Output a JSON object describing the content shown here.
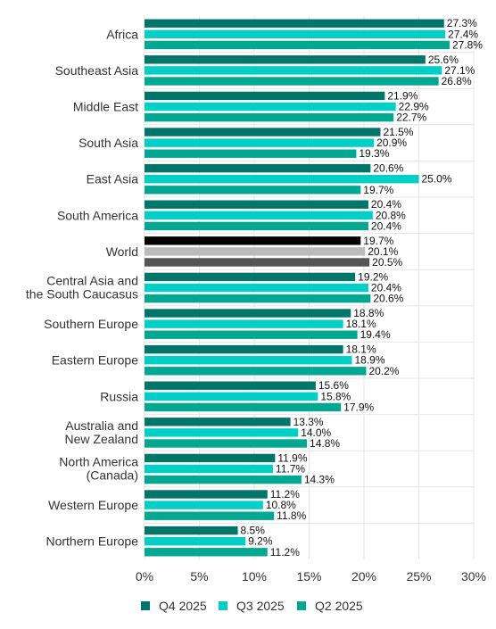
{
  "chart_data": {
    "type": "bar",
    "orientation": "horizontal",
    "categories": [
      "Africa",
      "Southeast Asia",
      "Middle East",
      "South Asia",
      "East Asia",
      "South America",
      "World",
      "Central Asia and the South Caucasus",
      "Southern Europe",
      "Eastern Europe",
      "Russia",
      "Australia and New Zealand",
      "North America (Canada)",
      "Western Europe",
      "Northern Europe"
    ],
    "series": [
      {
        "name": "Q4 2025",
        "color": "#00756a",
        "values": [
          27.3,
          25.6,
          21.9,
          21.5,
          20.6,
          20.4,
          19.7,
          19.2,
          18.8,
          18.1,
          15.6,
          13.3,
          11.9,
          11.2,
          8.5
        ],
        "labels": [
          "27.3%",
          "25.6%",
          "21.9%",
          "21.5%",
          "20.6%",
          "20.4%",
          "19.7%",
          "19.2%",
          "18.8%",
          "18.1%",
          "15.6%",
          "13.3%",
          "11.9%",
          "11.2%",
          "8.5%"
        ]
      },
      {
        "name": "Q3 2025",
        "color": "#00cfc5",
        "values": [
          27.4,
          27.1,
          22.9,
          20.9,
          25.0,
          20.8,
          20.1,
          20.4,
          18.1,
          18.9,
          15.8,
          14.0,
          11.7,
          10.8,
          9.2
        ],
        "labels": [
          "27.4%",
          "27.1%",
          "22.9%",
          "20.9%",
          "25.0%",
          "20.8%",
          "20.1%",
          "20.4%",
          "18.1%",
          "18.9%",
          "15.8%",
          "14.0%",
          "11.7%",
          "10.8%",
          "9.2%"
        ]
      },
      {
        "name": "Q2 2025",
        "color": "#00a892",
        "values": [
          27.8,
          26.8,
          22.7,
          19.3,
          19.7,
          20.4,
          20.5,
          20.6,
          19.4,
          20.2,
          17.9,
          14.8,
          14.3,
          11.8,
          11.2
        ],
        "labels": [
          "27.8%",
          "26.8%",
          "22.7%",
          "19.3%",
          "19.7%",
          "20.4%",
          "20.5%",
          "20.6%",
          "19.4%",
          "20.2%",
          "17.9%",
          "14.8%",
          "14.3%",
          "11.8%",
          "11.2%"
        ]
      }
    ],
    "highlight": {
      "category": "World",
      "colors": [
        "#000000",
        "#bbbbbb",
        "#555555"
      ]
    },
    "xaxis": {
      "ticks": [
        0,
        5,
        10,
        15,
        20,
        25,
        30
      ],
      "tick_labels": [
        "0%",
        "5%",
        "10%",
        "15%",
        "20%",
        "25%",
        "30%"
      ],
      "range": [
        0,
        30
      ]
    },
    "legend": {
      "position": "bottom",
      "items": [
        "Q4 2025",
        "Q3 2025",
        "Q2 2025"
      ]
    },
    "grid": true
  }
}
